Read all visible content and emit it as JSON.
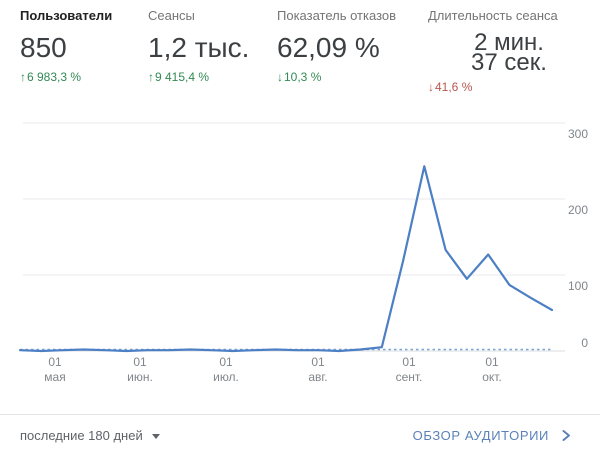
{
  "metrics": [
    {
      "label": "Пользователи",
      "value": "850",
      "arrow": "↑",
      "delta": "6 983,3 %",
      "delta_color": "#338a55",
      "selected": true
    },
    {
      "label": "Сеансы",
      "value": "1,2 тыс.",
      "arrow": "↑",
      "delta": "9 415,4 %",
      "delta_color": "#338a55",
      "selected": false
    },
    {
      "label": "Показатель отказов",
      "value": "62,09 %",
      "arrow": "↓",
      "delta": "10,3 %",
      "delta_color": "#338a55",
      "selected": false
    },
    {
      "label": "Длительность сеанса",
      "value": "2 мин. 37 сек.",
      "arrow": "↓",
      "delta": "41,6 %",
      "delta_color": "#b8564f",
      "selected": false
    }
  ],
  "chart_data": {
    "type": "line",
    "title": "",
    "xlabel": "",
    "ylabel": "",
    "x_labels": [
      {
        "day": "01",
        "month": "мая"
      },
      {
        "day": "01",
        "month": "июн."
      },
      {
        "day": "01",
        "month": "июл."
      },
      {
        "day": "01",
        "month": "авг."
      },
      {
        "day": "01",
        "month": "сент."
      },
      {
        "day": "01",
        "month": "окт."
      }
    ],
    "y_ticks": [
      0,
      100,
      200,
      300
    ],
    "ylim": [
      0,
      300
    ],
    "grid": "horizontal",
    "legend": "none",
    "line_color": "#4d7fc4",
    "dashed_color": "#7aa3d4",
    "series": [
      {
        "id": "previous-period",
        "style": "dashed",
        "values": [
          2,
          2,
          2,
          2,
          2,
          2,
          2,
          2,
          2,
          2,
          2,
          2,
          2,
          2,
          2,
          2,
          2,
          2,
          2,
          2,
          2,
          2,
          2,
          2,
          2,
          2
        ]
      },
      {
        "id": "current-period",
        "style": "solid",
        "values": [
          1,
          0,
          1,
          2,
          1,
          0,
          1,
          1,
          2,
          1,
          0,
          1,
          2,
          1,
          1,
          0,
          2,
          5,
          118,
          243,
          133,
          95,
          127,
          87,
          70,
          54
        ]
      }
    ]
  },
  "footer": {
    "date_range": "последние 180 дней",
    "link_label": "ОБЗОР АУДИТОРИИ"
  },
  "colors": {
    "accent_blue": "#4d7fc4",
    "link_blue": "#5b82b8",
    "positive_green": "#338a55",
    "negative_red": "#b8564f"
  }
}
